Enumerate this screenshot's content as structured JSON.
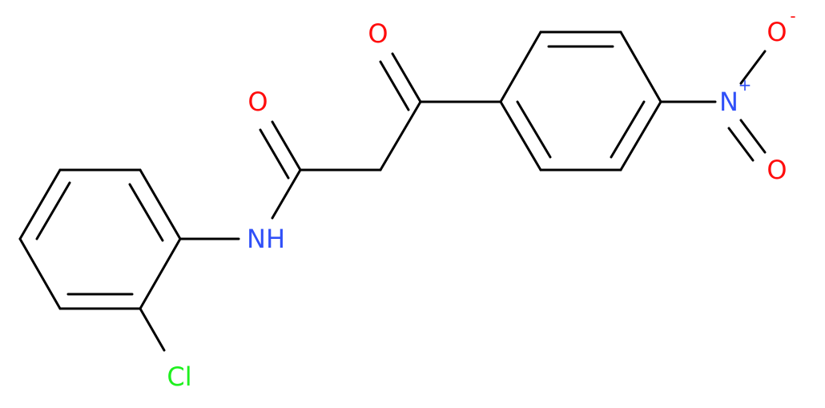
{
  "atoms": [
    {
      "label": "O"
    },
    {
      "label": "O"
    },
    {
      "label": "NH"
    },
    {
      "label": "Cl"
    },
    {
      "label": "N",
      "charge": "+"
    },
    {
      "label": "O",
      "charge": "-"
    },
    {
      "label": "O"
    }
  ]
}
